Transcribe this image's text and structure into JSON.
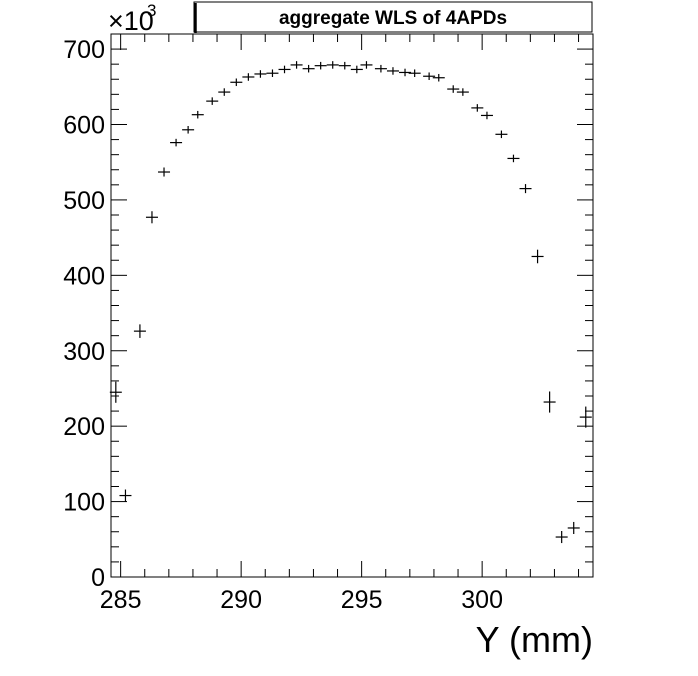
{
  "chart_data": {
    "type": "scatter",
    "title": "aggregate WLS of 4APDs",
    "xlabel": "Y (mm)",
    "ylabel": "",
    "y_multiplier": "×10",
    "y_multiplier_exp": "3",
    "xlim": [
      284.6,
      304.6
    ],
    "ylim": [
      0,
      720
    ],
    "x_ticks": [
      285,
      290,
      295,
      300
    ],
    "x_tick_labels": [
      "285",
      "290",
      "295",
      "300"
    ],
    "y_ticks": [
      0,
      100,
      200,
      300,
      400,
      500,
      600,
      700
    ],
    "y_tick_labels": [
      "0",
      "100",
      "200",
      "300",
      "400",
      "500",
      "600",
      "700"
    ],
    "grid": false,
    "colors": {
      "marker": "#000000",
      "frame": "#000000"
    },
    "series": [
      {
        "x": [
          284.8,
          285.2,
          285.8,
          286.3,
          286.8,
          287.3,
          287.8,
          288.2,
          288.8,
          289.3,
          289.8,
          290.3,
          290.8,
          291.3,
          291.8,
          292.3,
          292.8,
          293.3,
          293.8,
          294.3,
          294.8,
          295.2,
          295.8,
          296.3,
          296.8,
          297.2,
          297.8,
          298.2,
          298.8,
          299.2,
          299.8,
          300.2,
          300.8,
          301.3,
          301.8,
          302.3,
          302.8,
          303.3,
          303.8,
          304.3
        ],
        "y": [
          245,
          108,
          326,
          477,
          537,
          576,
          593,
          613,
          631,
          643,
          656,
          663,
          667,
          668,
          673,
          679,
          674,
          678,
          679,
          678,
          673,
          679,
          674,
          671,
          669,
          668,
          664,
          662,
          647,
          643,
          622,
          612,
          587,
          555,
          515,
          425,
          232,
          53,
          65,
          212
        ],
        "y_err": [
          14,
          8,
          9,
          8,
          6,
          5,
          5,
          5,
          5,
          5,
          5,
          5,
          5,
          5,
          5,
          5,
          5,
          5,
          5,
          5,
          5,
          5,
          5,
          5,
          5,
          5,
          5,
          5,
          5,
          5,
          5,
          5,
          5,
          5,
          6,
          9,
          14,
          8,
          8,
          14
        ]
      }
    ]
  }
}
